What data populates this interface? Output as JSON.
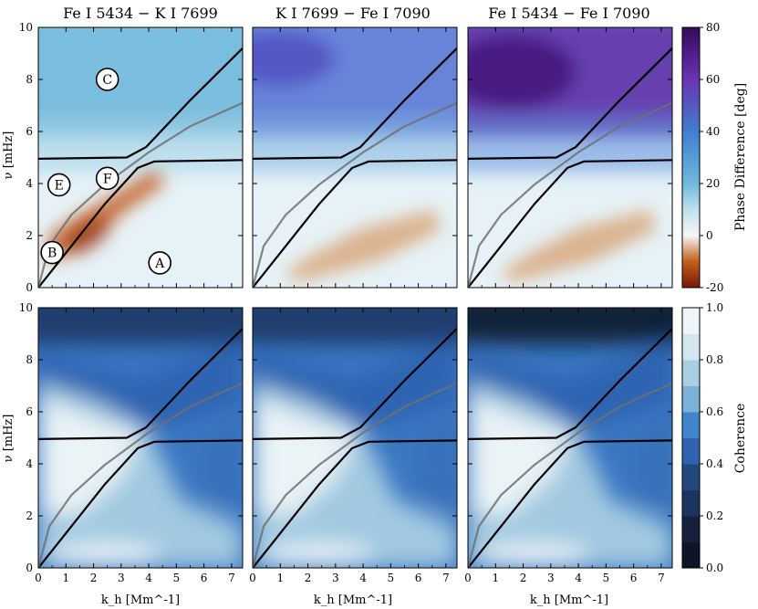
{
  "chart_data": {
    "type": "heatmap",
    "columns": [
      "Fe I 5434 − K I 7699",
      "K I 7699 − Fe I 7090",
      "Fe I 5434 − Fe I 7090"
    ],
    "rows": [
      "Phase Difference",
      "Coherence"
    ],
    "xlabel": "k_h [Mm^-1]",
    "ylabel": "ν [mHz]",
    "xlim": [
      0,
      7.4
    ],
    "ylim": [
      0,
      10
    ],
    "xticks": [
      0,
      1,
      2,
      3,
      4,
      5,
      6,
      7
    ],
    "yticks": [
      0,
      2,
      4,
      6,
      8,
      10
    ],
    "phase_colorbar": {
      "label": "Phase Difference [deg]",
      "range": [
        -20,
        80
      ],
      "ticks": [
        -20,
        0,
        20,
        40,
        60,
        80
      ]
    },
    "coherence_colorbar": {
      "label": "Coherence",
      "range": [
        0,
        1
      ],
      "ticks": [
        "0.0",
        "0.2",
        "0.4",
        "0.6",
        "0.8",
        "1.0"
      ]
    },
    "curves": [
      {
        "name": "lower mode branch",
        "color": "#000000",
        "points": [
          [
            0,
            0
          ],
          [
            1.2,
            1.6
          ],
          [
            2.4,
            3.2
          ],
          [
            3.6,
            4.6
          ],
          [
            4.2,
            4.85
          ],
          [
            7.4,
            4.9
          ]
        ]
      },
      {
        "name": "upper mode branch",
        "color": "#000000",
        "points": [
          [
            0,
            4.95
          ],
          [
            3.2,
            5.0
          ],
          [
            3.9,
            5.4
          ],
          [
            5.5,
            7.2
          ],
          [
            7.4,
            9.2
          ]
        ]
      },
      {
        "name": "gray dispersion curve",
        "color": "#707070",
        "points": [
          [
            0,
            0
          ],
          [
            0.4,
            1.6
          ],
          [
            1.2,
            2.8
          ],
          [
            2.4,
            3.95
          ],
          [
            4.0,
            5.2
          ],
          [
            5.5,
            6.2
          ],
          [
            7.4,
            7.1
          ]
        ]
      }
    ],
    "annotations": [
      {
        "label": "A",
        "k": 4.4,
        "nu": 0.95
      },
      {
        "label": "B",
        "k": 0.5,
        "nu": 1.35
      },
      {
        "label": "C",
        "k": 2.5,
        "nu": 8.0
      },
      {
        "label": "E",
        "k": 0.75,
        "nu": 3.95
      },
      {
        "label": "F",
        "k": 2.5,
        "nu": 4.2
      }
    ]
  }
}
